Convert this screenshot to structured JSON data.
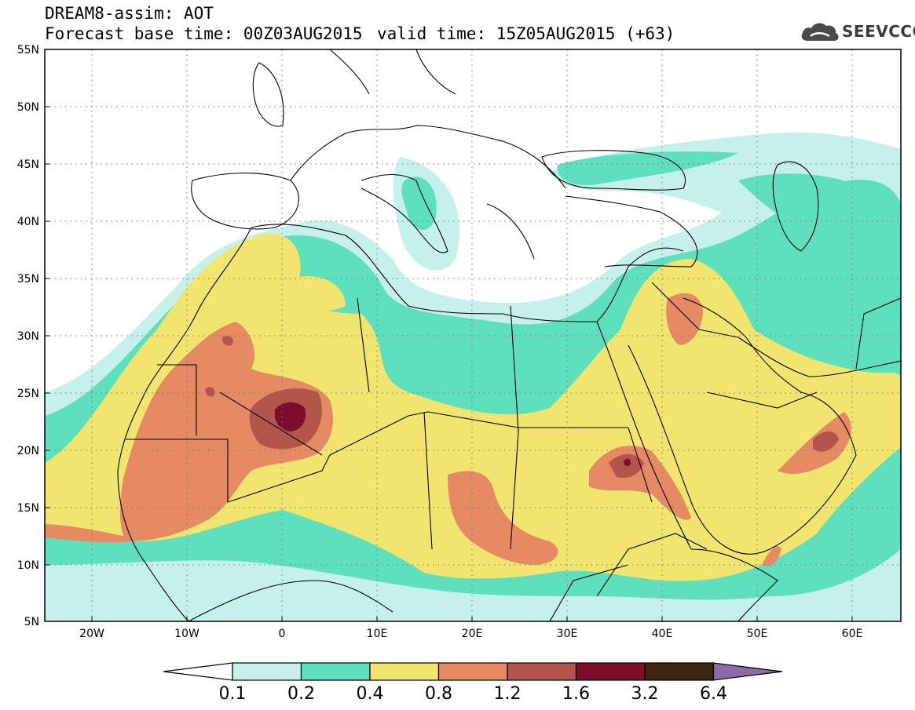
{
  "header": {
    "line1": "DREAM8-assim: AOT",
    "line2": "Forecast base time: 00Z03AUG2015",
    "line3": "valid time: 15Z05AUG2015 (+63)"
  },
  "logo": {
    "text": "SEEVCCC",
    "icon": "cloud-logo-icon"
  },
  "map": {
    "lon_range": [
      -25,
      65
    ],
    "lat_range": [
      5,
      55
    ],
    "lat_labels": [
      "55N",
      "50N",
      "45N",
      "40N",
      "35N",
      "30N",
      "25N",
      "20N",
      "15N",
      "10N",
      "5N"
    ],
    "lon_labels": [
      "20W",
      "10W",
      "0",
      "10E",
      "20E",
      "30E",
      "40E",
      "50E",
      "60E"
    ],
    "grid": "dotted"
  },
  "colorbar": {
    "labels": [
      "0.1",
      "0.2",
      "0.4",
      "0.8",
      "1.2",
      "1.6",
      "3.2",
      "6.4"
    ],
    "colors": [
      "#c6f0ea",
      "#5fe0bd",
      "#f2e56f",
      "#e58a62",
      "#b4554b",
      "#7c0d2c",
      "#3e2413",
      "#8a6aa8"
    ],
    "under_color": "#ffffff"
  }
}
